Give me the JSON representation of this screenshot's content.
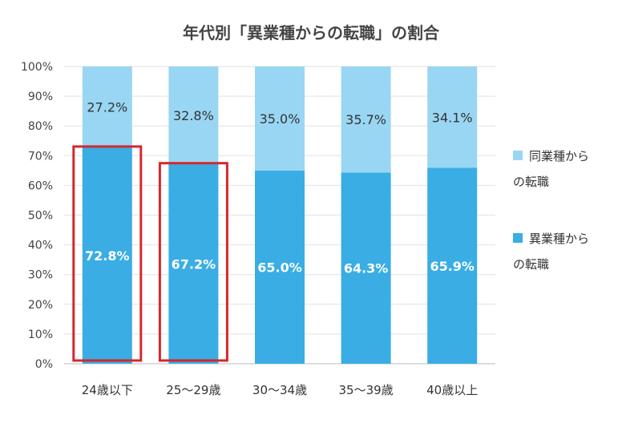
{
  "chart_data": {
    "type": "bar",
    "stacked": true,
    "percent": true,
    "title": "年代別「異業種からの転職」の割合",
    "categories": [
      "24歳以下",
      "25～29歳",
      "30～34歳",
      "35～39歳",
      "40歳以上"
    ],
    "series": [
      {
        "name": "異業種からの転職",
        "values": [
          72.8,
          67.2,
          65.0,
          64.3,
          65.9
        ],
        "color": "#39ADE4",
        "labels": [
          "72.8%",
          "67.2%",
          "65.0%",
          "64.3%",
          "65.9%"
        ]
      },
      {
        "name": "同業種からの転職",
        "values": [
          27.2,
          32.8,
          35.0,
          35.7,
          34.1
        ],
        "color": "#99D6F3",
        "labels": [
          "27.2%",
          "32.8%",
          "35.0%",
          "35.7%",
          "34.1%"
        ]
      }
    ],
    "yticks": [
      "0%",
      "10%",
      "20%",
      "30%",
      "40%",
      "50%",
      "60%",
      "70%",
      "80%",
      "90%",
      "100%"
    ],
    "ylim": [
      0,
      100
    ],
    "grid": true,
    "legend": {
      "placement": "right",
      "entries": [
        {
          "lines": [
            "同業種から",
            "の転職"
          ],
          "color": "#99D6F3"
        },
        {
          "lines": [
            "異業種から",
            "の転職"
          ],
          "color": "#39ADE4"
        }
      ]
    },
    "highlight": {
      "categories": [
        "24歳以下",
        "25～29歳"
      ],
      "color": "#D4282C"
    }
  }
}
